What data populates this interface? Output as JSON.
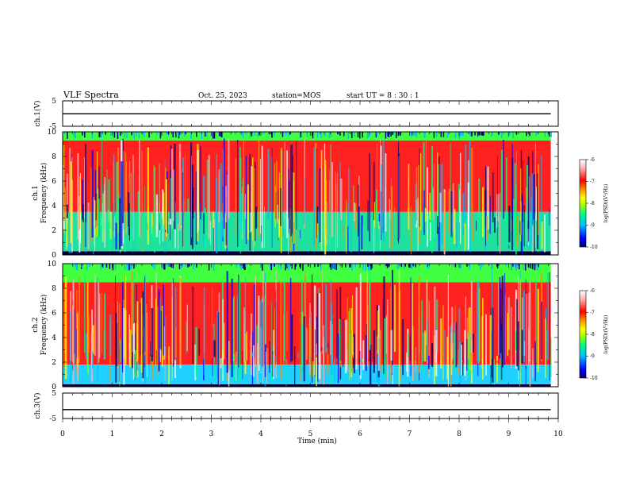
{
  "header": {
    "title": "VLF Spectra",
    "date": "Oct. 25, 2023",
    "station": "station=MOS",
    "start_ut": "start UT =  8 : 30 : 1"
  },
  "chart_data": [
    {
      "type": "line",
      "panel": "ch1-waveform",
      "ylabel": "ch.1(V)",
      "ylim": [
        -5,
        5
      ],
      "yticks": [
        "5",
        "-5"
      ],
      "xlim": [
        0,
        10
      ],
      "series": [
        {
          "x": [
            0,
            9.85
          ],
          "values": [
            -0.1,
            -0.1
          ]
        }
      ]
    },
    {
      "type": "heatmap",
      "panel": "ch1-spectrogram",
      "ylabel_line1": "ch.1",
      "ylabel_line2": "Frequency (kHz)",
      "ylim": [
        0,
        10
      ],
      "yticks": [
        "0",
        "2",
        "4",
        "6",
        "8",
        "10"
      ],
      "xlim": [
        0,
        10
      ],
      "data_x_extent": [
        0,
        9.85
      ],
      "colorbar": {
        "label": "log(PSD)(V²/Hz)",
        "range": [
          -10,
          -6
        ],
        "ticks": [
          "-6",
          "-7",
          "-8",
          "-9",
          "-10"
        ],
        "colors": [
          "#000070",
          "#0000ff",
          "#00c0ff",
          "#00ff80",
          "#a0ff00",
          "#ffff00",
          "#ff9000",
          "#ff0000",
          "#ffb0b0",
          "#ffffff"
        ]
      },
      "bands": [
        {
          "f": [
            0.0,
            0.3
          ],
          "level": "#000040"
        },
        {
          "f": [
            0.3,
            3.5
          ],
          "level": "#20e0a0"
        },
        {
          "f": [
            3.5,
            9.3
          ],
          "level": "#ff2020"
        },
        {
          "f": [
            9.3,
            10.0
          ],
          "level": "#40ff40"
        }
      ]
    },
    {
      "type": "heatmap",
      "panel": "ch2-spectrogram",
      "ylabel_line1": "ch.2",
      "ylabel_line2": "Frequency (kHz)",
      "ylim": [
        0,
        10
      ],
      "yticks": [
        "0",
        "2",
        "4",
        "6",
        "8",
        "10"
      ],
      "xlim": [
        0,
        10
      ],
      "data_x_extent": [
        0,
        9.85
      ],
      "colorbar": {
        "label": "log(PSD)(V²/Hz)",
        "range": [
          -10,
          -6
        ],
        "ticks": [
          "-6",
          "-7",
          "-8",
          "-9",
          "-10"
        ],
        "colors": [
          "#000070",
          "#0000ff",
          "#00c0ff",
          "#00ff80",
          "#a0ff00",
          "#ffff00",
          "#ff9000",
          "#ff0000",
          "#ffb0b0",
          "#ffffff"
        ]
      },
      "bands": [
        {
          "f": [
            0.0,
            0.2
          ],
          "level": "#000040"
        },
        {
          "f": [
            0.2,
            1.8
          ],
          "level": "#20d0ff"
        },
        {
          "f": [
            1.8,
            8.5
          ],
          "level": "#ff2020"
        },
        {
          "f": [
            8.5,
            10.0
          ],
          "level": "#40ff40"
        }
      ]
    },
    {
      "type": "line",
      "panel": "ch3-waveform",
      "ylabel": "ch.3(V)",
      "ylim": [
        -5,
        5
      ],
      "yticks": [
        "5",
        "-5"
      ],
      "xlim": [
        0,
        10
      ],
      "xticks": [
        "0",
        "1",
        "2",
        "3",
        "4",
        "5",
        "6",
        "7",
        "8",
        "9",
        "10"
      ],
      "xlabel": "Time (min)",
      "series": [
        {
          "x": [
            0,
            9.85
          ],
          "values": [
            -1.5,
            -1.5
          ]
        }
      ]
    }
  ]
}
